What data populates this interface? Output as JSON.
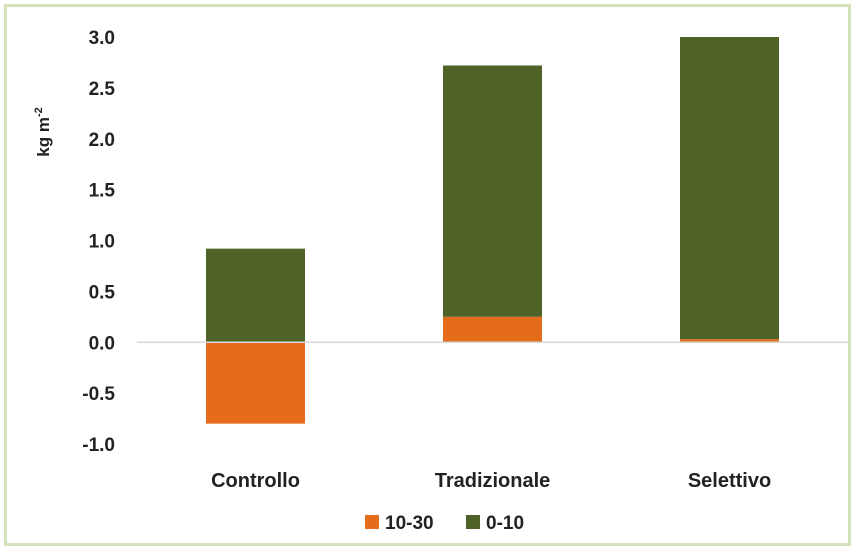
{
  "colors": {
    "frame_border": "#d3e2b9",
    "series_10_30": "#e46c1a",
    "series_0_10": "#4f6228",
    "axis_line": "#d9d9d9",
    "text": "#222222"
  },
  "chart_data": {
    "type": "bar",
    "stacked": true,
    "title": "",
    "xlabel": "",
    "ylabel": "kg m",
    "ylabel_superscript": "-2",
    "ylim": [
      -1.0,
      3.0
    ],
    "yticks": [
      "3.0",
      "2.5",
      "2.0",
      "1.5",
      "1.0",
      "0.5",
      "0.0",
      "-0.5",
      "-1.0"
    ],
    "grid": false,
    "legend_position": "bottom",
    "categories": [
      "Controllo",
      "Tradizionale",
      "Selettivo"
    ],
    "series": [
      {
        "name": "10-30",
        "color": "#e46c1a",
        "values": [
          -0.8,
          0.25,
          0.03
        ]
      },
      {
        "name": "0-10",
        "color": "#4f6228",
        "values": [
          0.92,
          2.47,
          2.97
        ]
      }
    ]
  }
}
